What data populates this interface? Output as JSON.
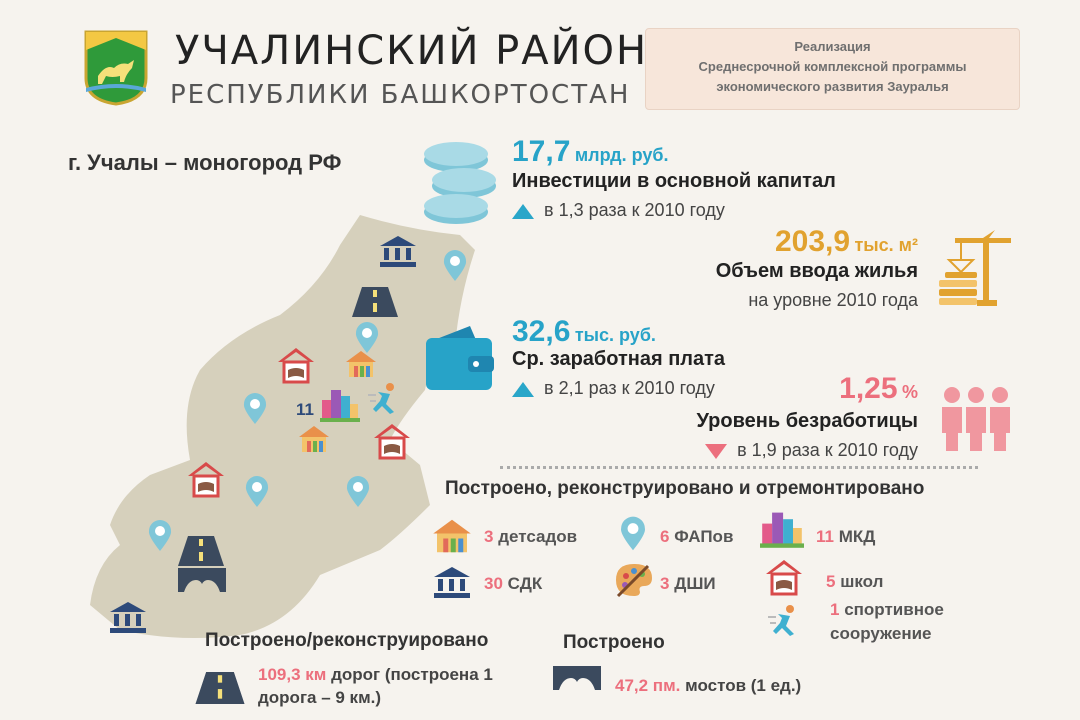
{
  "header": {
    "title": "УЧАЛИНСКИЙ РАЙОН",
    "subtitle": "РЕСПУБЛИКИ БАШКОРТОСТАН",
    "program_lines": [
      "Реализация",
      "Среднесрочной комплексной программы",
      "экономического развития Зауралья"
    ]
  },
  "city": "г. Учалы – моногород РФ",
  "map": {
    "mkd_count": "11"
  },
  "investments": {
    "value": "17,7",
    "unit": "млрд. руб.",
    "label": "Инвестиции в основной капитал",
    "change": "в 1,3 раза к 2010 году",
    "trend": "up"
  },
  "housing": {
    "value": "203,9",
    "unit": "тыс. м²",
    "label": "Объем ввода жилья",
    "change": "на уровне 2010 года"
  },
  "salary": {
    "value": "32,6",
    "unit": "тыс. руб.",
    "label": "Ср. заработная плата",
    "change": "в 2,1 раз к 2010 году",
    "trend": "up"
  },
  "unemployment": {
    "value": "1,25",
    "unit": "%",
    "label": "Уровень безработицы",
    "change": "в 1,9 раза к 2010 году",
    "trend": "down"
  },
  "built": {
    "heading": "Построено, реконструировано  и отремонтировано",
    "kindergartens": {
      "n": "3",
      "label": "детсадов"
    },
    "fap": {
      "n": "6",
      "label": "ФАПов"
    },
    "mkd": {
      "n": "11",
      "label": "МКД"
    },
    "sdk": {
      "n": "30",
      "label": "СДК"
    },
    "dshi": {
      "n": "3",
      "label": "ДШИ"
    },
    "schools": {
      "n": "5",
      "label": "школ"
    },
    "sport": {
      "n": "1",
      "label": "спортивное",
      "label2": "сооружение"
    }
  },
  "roads": {
    "heading": "Построено/реконструировано",
    "value": "109,3 км",
    "text1": "дорог (построена 1",
    "text2": "дорога – 9  км.)"
  },
  "bridges": {
    "heading": "Построено",
    "value": "47,2 пм.",
    "text": "мостов (1 ед.)"
  },
  "colors": {
    "blue": "#27a3c8",
    "gold": "#e1a22f",
    "pink": "#ec6f7d",
    "map": "#d6d0bc",
    "navy": "#2d4a7a"
  }
}
